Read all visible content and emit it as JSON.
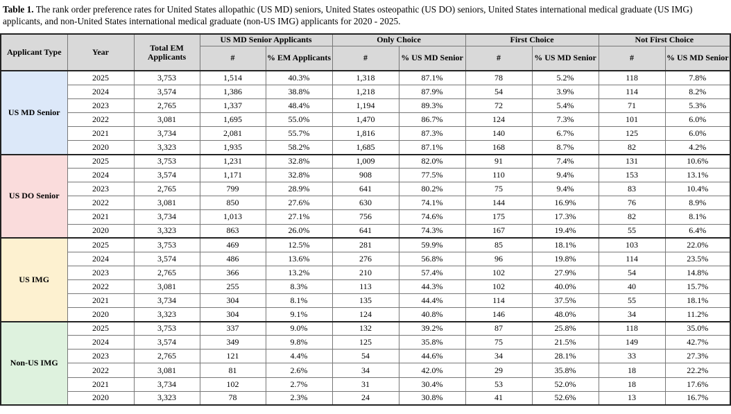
{
  "caption": {
    "label": "Table 1.",
    "text": "The rank order preference rates for United States allopathic (US MD) seniors, United States osteopathic (US DO) seniors, United States international medical graduate (US IMG)  applicants, and non-United States international medical graduate (non-US IMG) applicants for 2020 - 2025."
  },
  "table": {
    "headers": {
      "applicant_type": "Applicant Type",
      "year": "Year",
      "total": "Total EM Applicants",
      "groups": [
        {
          "title": "US MD Senior Applicants",
          "columns": [
            "#",
            "% EM Applicants"
          ]
        },
        {
          "title": "Only Choice",
          "columns": [
            "#",
            "% US MD Senior"
          ]
        },
        {
          "title": "First Choice",
          "columns": [
            "#",
            "% US MD Senior"
          ]
        },
        {
          "title": "Not First Choice",
          "columns": [
            "#",
            "% US MD Senior"
          ]
        }
      ]
    },
    "sections": [
      {
        "label": "US MD Senior",
        "color": "#dce8f9",
        "rows": [
          [
            "2025",
            "3,753",
            "1,514",
            "40.3%",
            "1,318",
            "87.1%",
            "78",
            "5.2%",
            "118",
            "7.8%"
          ],
          [
            "2024",
            "3,574",
            "1,386",
            "38.8%",
            "1,218",
            "87.9%",
            "54",
            "3.9%",
            "114",
            "8.2%"
          ],
          [
            "2023",
            "2,765",
            "1,337",
            "48.4%",
            "1,194",
            "89.3%",
            "72",
            "5.4%",
            "71",
            "5.3%"
          ],
          [
            "2022",
            "3,081",
            "1,695",
            "55.0%",
            "1,470",
            "86.7%",
            "124",
            "7.3%",
            "101",
            "6.0%"
          ],
          [
            "2021",
            "3,734",
            "2,081",
            "55.7%",
            "1,816",
            "87.3%",
            "140",
            "6.7%",
            "125",
            "6.0%"
          ],
          [
            "2020",
            "3,323",
            "1,935",
            "58.2%",
            "1,685",
            "87.1%",
            "168",
            "8.7%",
            "82",
            "4.2%"
          ]
        ]
      },
      {
        "label": "US DO Senior",
        "color": "#fadcdc",
        "rows": [
          [
            "2025",
            "3,753",
            "1,231",
            "32.8%",
            "1,009",
            "82.0%",
            "91",
            "7.4%",
            "131",
            "10.6%"
          ],
          [
            "2024",
            "3,574",
            "1,171",
            "32.8%",
            "908",
            "77.5%",
            "110",
            "9.4%",
            "153",
            "13.1%"
          ],
          [
            "2023",
            "2,765",
            "799",
            "28.9%",
            "641",
            "80.2%",
            "75",
            "9.4%",
            "83",
            "10.4%"
          ],
          [
            "2022",
            "3,081",
            "850",
            "27.6%",
            "630",
            "74.1%",
            "144",
            "16.9%",
            "76",
            "8.9%"
          ],
          [
            "2021",
            "3,734",
            "1,013",
            "27.1%",
            "756",
            "74.6%",
            "175",
            "17.3%",
            "82",
            "8.1%"
          ],
          [
            "2020",
            "3,323",
            "863",
            "26.0%",
            "641",
            "74.3%",
            "167",
            "19.4%",
            "55",
            "6.4%"
          ]
        ]
      },
      {
        "label": "US IMG",
        "color": "#fdf1d0",
        "rows": [
          [
            "2025",
            "3,753",
            "469",
            "12.5%",
            "281",
            "59.9%",
            "85",
            "18.1%",
            "103",
            "22.0%"
          ],
          [
            "2024",
            "3,574",
            "486",
            "13.6%",
            "276",
            "56.8%",
            "96",
            "19.8%",
            "114",
            "23.5%"
          ],
          [
            "2023",
            "2,765",
            "366",
            "13.2%",
            "210",
            "57.4%",
            "102",
            "27.9%",
            "54",
            "14.8%"
          ],
          [
            "2022",
            "3,081",
            "255",
            "8.3%",
            "113",
            "44.3%",
            "102",
            "40.0%",
            "40",
            "15.7%"
          ],
          [
            "2021",
            "3,734",
            "304",
            "8.1%",
            "135",
            "44.4%",
            "114",
            "37.5%",
            "55",
            "18.1%"
          ],
          [
            "2020",
            "3,323",
            "304",
            "9.1%",
            "124",
            "40.8%",
            "146",
            "48.0%",
            "34",
            "11.2%"
          ]
        ]
      },
      {
        "label": "Non-US IMG",
        "color": "#def2de",
        "rows": [
          [
            "2025",
            "3,753",
            "337",
            "9.0%",
            "132",
            "39.2%",
            "87",
            "25.8%",
            "118",
            "35.0%"
          ],
          [
            "2024",
            "3,574",
            "349",
            "9.8%",
            "125",
            "35.8%",
            "75",
            "21.5%",
            "149",
            "42.7%"
          ],
          [
            "2023",
            "2,765",
            "121",
            "4.4%",
            "54",
            "44.6%",
            "34",
            "28.1%",
            "33",
            "27.3%"
          ],
          [
            "2022",
            "3,081",
            "81",
            "2.6%",
            "34",
            "42.0%",
            "29",
            "35.8%",
            "18",
            "22.2%"
          ],
          [
            "2021",
            "3,734",
            "102",
            "2.7%",
            "31",
            "30.4%",
            "53",
            "52.0%",
            "18",
            "17.6%"
          ],
          [
            "2020",
            "3,323",
            "78",
            "2.3%",
            "24",
            "30.8%",
            "41",
            "52.6%",
            "13",
            "16.7%"
          ]
        ]
      }
    ]
  }
}
